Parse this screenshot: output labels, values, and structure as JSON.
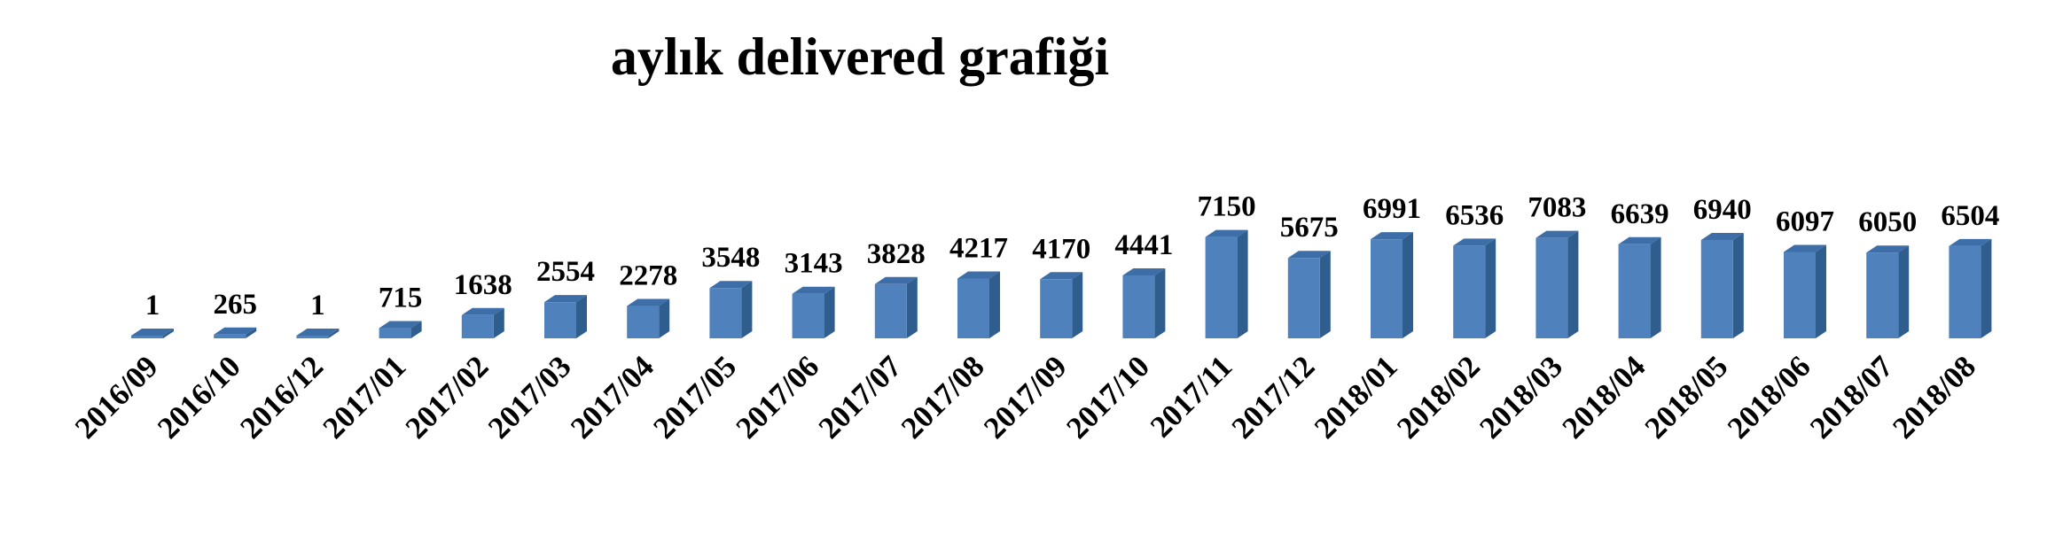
{
  "chart_data": {
    "type": "bar",
    "title": "aylık delivered grafiği",
    "categories": [
      "2016/09",
      "2016/10",
      "2016/12",
      "2017/01",
      "2017/02",
      "2017/03",
      "2017/04",
      "2017/05",
      "2017/06",
      "2017/07",
      "2017/08",
      "2017/09",
      "2017/10",
      "2017/11",
      "2017/12",
      "2018/01",
      "2018/02",
      "2018/03",
      "2018/04",
      "2018/05",
      "2018/06",
      "2018/07",
      "2018/08"
    ],
    "values": [
      1,
      265,
      1,
      715,
      1638,
      2554,
      2278,
      3548,
      3143,
      3828,
      4217,
      4170,
      4441,
      7150,
      5675,
      6991,
      6536,
      7083,
      6639,
      6940,
      6097,
      6050,
      6504
    ],
    "data_labels": [
      "1",
      "265",
      "1",
      "715",
      "1638",
      "2554",
      "2278",
      "3548",
      "3143",
      "3828",
      "4217",
      "4170",
      "4441",
      "7150",
      "5675",
      "6991",
      "6536",
      "7083",
      "6639",
      "6940",
      "6097",
      "6050",
      "6504"
    ],
    "xlabel": "",
    "ylabel": "",
    "grid": false,
    "legend": "none",
    "bar_style": "3d",
    "colors": {
      "front": "#4f81bd",
      "side": "#2f5d8e",
      "top": "#3d6ea7"
    }
  }
}
